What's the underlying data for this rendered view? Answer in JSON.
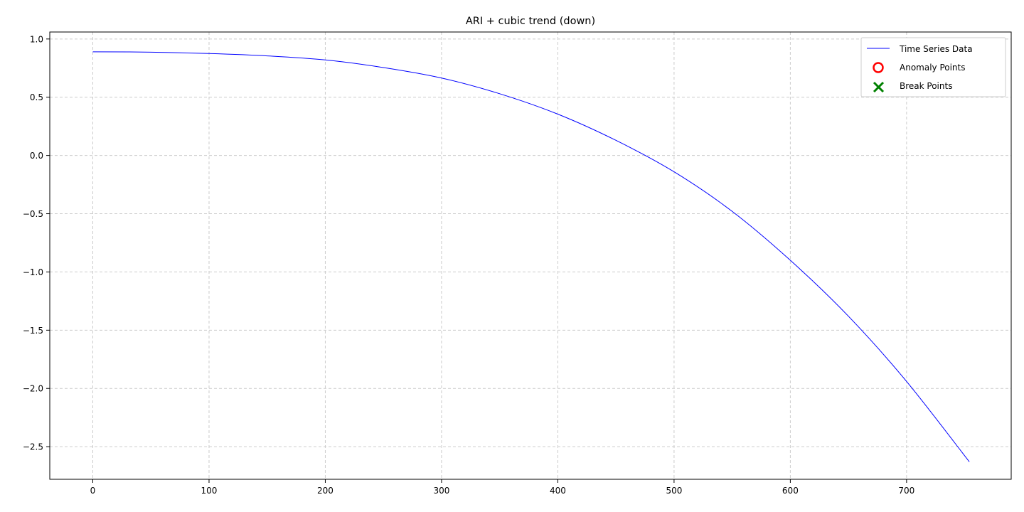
{
  "chart_data": {
    "type": "line",
    "title": "ARI + cubic trend (down)",
    "xlabel": "",
    "ylabel": "",
    "xlim": [
      -37,
      790
    ],
    "ylim": [
      -2.78,
      1.06
    ],
    "xticks": [
      0,
      100,
      200,
      300,
      400,
      500,
      600,
      700
    ],
    "yticks": [
      1.0,
      0.5,
      0.0,
      -0.5,
      -1.0,
      -1.5,
      -2.0,
      -2.5
    ],
    "ytick_labels": [
      "1.0",
      "0.5",
      "0.0",
      "−0.5",
      "−1.0",
      "−1.5",
      "−2.0",
      "−2.5"
    ],
    "grid": true,
    "legend_position": "top-right",
    "series": [
      {
        "name": "Time Series Data",
        "color": "#0000ff",
        "x": [
          0,
          50,
          100,
          150,
          200,
          250,
          300,
          350,
          400,
          450,
          500,
          550,
          600,
          650,
          700,
          754
        ],
        "y": [
          0.89,
          0.887,
          0.875,
          0.855,
          0.82,
          0.755,
          0.665,
          0.53,
          0.355,
          0.13,
          -0.14,
          -0.48,
          -0.9,
          -1.38,
          -1.94,
          -2.63
        ]
      },
      {
        "name": "Anomaly Points",
        "color": "#ff0000",
        "marker": "circle-open",
        "x": [],
        "y": []
      },
      {
        "name": "Break Points",
        "color": "#008000",
        "marker": "x",
        "x": [],
        "y": []
      }
    ]
  }
}
